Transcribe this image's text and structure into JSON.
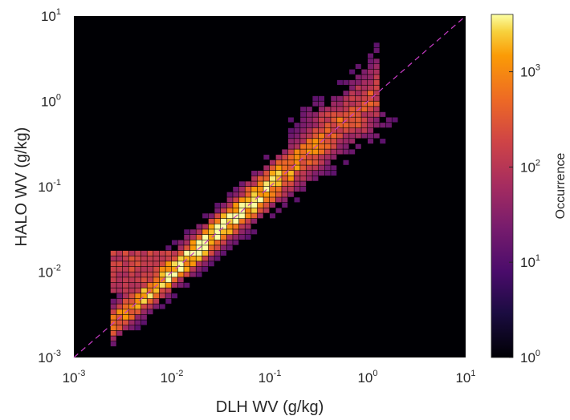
{
  "chart_data": {
    "type": "heatmap",
    "title": "",
    "xlabel": "DLH WV (g/kg)",
    "ylabel": "HALO WV (g/kg)",
    "xscale": "log",
    "yscale": "log",
    "xlim": [
      0.001,
      10
    ],
    "ylim": [
      0.001,
      10
    ],
    "x_ticks": [
      {
        "base": "10",
        "exp": "-3"
      },
      {
        "base": "10",
        "exp": "-2"
      },
      {
        "base": "10",
        "exp": "-1"
      },
      {
        "base": "10",
        "exp": "0"
      },
      {
        "base": "10",
        "exp": "1"
      }
    ],
    "y_ticks": [
      {
        "base": "10",
        "exp": "-3"
      },
      {
        "base": "10",
        "exp": "-2"
      },
      {
        "base": "10",
        "exp": "-1"
      },
      {
        "base": "10",
        "exp": "0"
      },
      {
        "base": "10",
        "exp": "1"
      }
    ],
    "reference_line": "1:1",
    "colorbar": {
      "label": "Occurrence",
      "scale": "log",
      "lim": [
        1,
        4000
      ],
      "colormap": "inferno",
      "ticks": [
        {
          "base": "10",
          "exp": "0"
        },
        {
          "base": "10",
          "exp": "1"
        },
        {
          "base": "10",
          "exp": "2"
        },
        {
          "base": "10",
          "exp": "3"
        }
      ]
    },
    "colors": {
      "background": "#000004",
      "reference_line": "#c83cc8"
    }
  }
}
